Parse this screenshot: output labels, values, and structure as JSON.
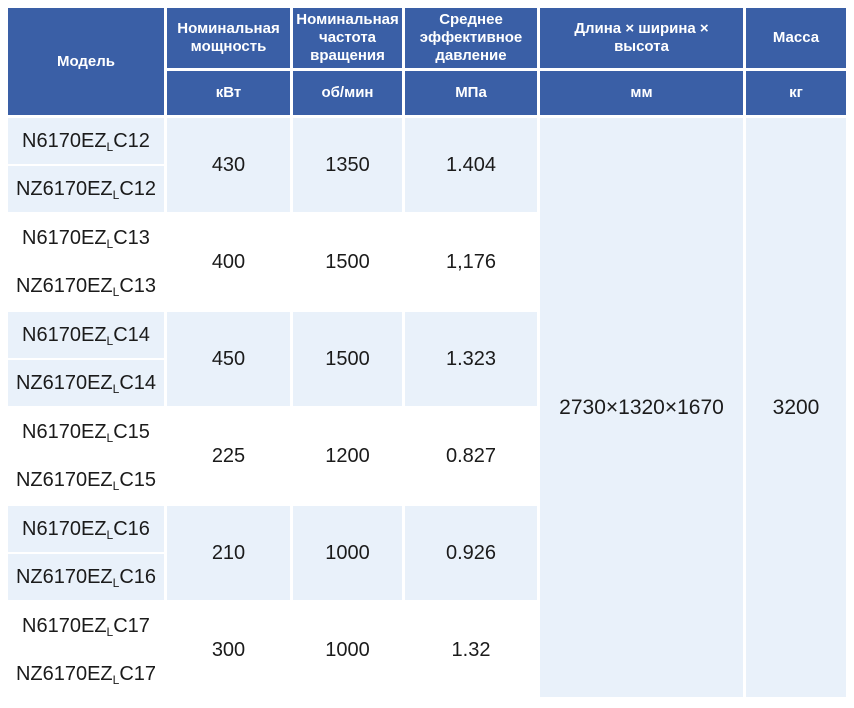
{
  "table": {
    "header": {
      "model": "Модель",
      "power": {
        "label": "Номинальная мощность",
        "unit": "кВт"
      },
      "speed": {
        "label": "Номинальная частота вращения",
        "unit": "об/мин"
      },
      "pressure": {
        "label": "Среднее эффективное давление",
        "unit": "МПа"
      },
      "dimensions": {
        "label": "Длина × ширина × высота",
        "unit": "мм"
      },
      "mass": {
        "label": "Масса",
        "unit": "кг"
      }
    },
    "groups": [
      {
        "models": [
          {
            "prefix": "N6170EZ",
            "sub": "L",
            "suffix": "C12"
          },
          {
            "prefix": "NZ6170EZ",
            "sub": "L",
            "suffix": "C12"
          }
        ],
        "power": "430",
        "speed": "1350",
        "pressure": "1.404"
      },
      {
        "models": [
          {
            "prefix": "N6170EZ",
            "sub": "L",
            "suffix": "C13"
          },
          {
            "prefix": "NZ6170EZ",
            "sub": "L",
            "suffix": "C13"
          }
        ],
        "power": "400",
        "speed": "1500",
        "pressure": "1,176"
      },
      {
        "models": [
          {
            "prefix": "N6170EZ",
            "sub": "L",
            "suffix": "C14"
          },
          {
            "prefix": "NZ6170EZ",
            "sub": "L",
            "suffix": "C14"
          }
        ],
        "power": "450",
        "speed": "1500",
        "pressure": "1.323"
      },
      {
        "models": [
          {
            "prefix": "N6170EZ",
            "sub": "L",
            "suffix": "C15"
          },
          {
            "prefix": "NZ6170EZ",
            "sub": "L",
            "suffix": "C15"
          }
        ],
        "power": "225",
        "speed": "1200",
        "pressure": "0.827"
      },
      {
        "models": [
          {
            "prefix": "N6170EZ",
            "sub": "L",
            "suffix": "C16"
          },
          {
            "prefix": "NZ6170EZ",
            "sub": "L",
            "suffix": "C16"
          }
        ],
        "power": "210",
        "speed": "1000",
        "pressure": "0.926"
      },
      {
        "models": [
          {
            "prefix": "N6170EZ",
            "sub": "L",
            "suffix": "C17"
          },
          {
            "prefix": "NZ6170EZ",
            "sub": "L",
            "suffix": "C17"
          }
        ],
        "power": "300",
        "speed": "1000",
        "pressure": "1.32"
      }
    ],
    "merged": {
      "dimensions": "2730×1320×1670",
      "mass": "3200"
    }
  },
  "colors": {
    "header_bg": "#3a5fa6",
    "header_text": "#ffffff",
    "row_alt_bg": "#e9f1fa",
    "row_bg": "#ffffff",
    "body_text": "#1b1b1b",
    "page_bg": "#ffffff"
  }
}
